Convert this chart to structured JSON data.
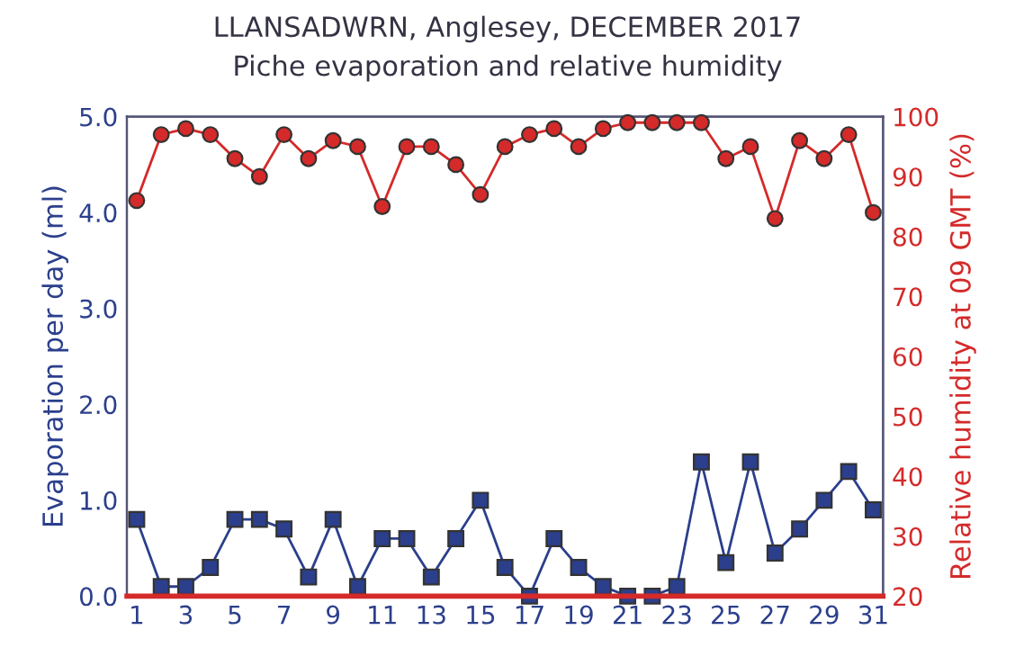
{
  "chart_data": {
    "type": "line",
    "title": "LLANSADWRN, Anglesey, DECEMBER 2017",
    "subtitle": "Piche evaporation and relative humidity",
    "ylabel": "Evaporation per day (ml)",
    "y2label": "Relative humidity at 09 GMT (%)",
    "x": [
      1,
      2,
      3,
      4,
      5,
      6,
      7,
      8,
      9,
      10,
      11,
      12,
      13,
      14,
      15,
      16,
      17,
      18,
      19,
      20,
      21,
      22,
      23,
      24,
      25,
      26,
      27,
      28,
      29,
      30,
      31
    ],
    "xlim": [
      0.6,
      31.4
    ],
    "xticks": [
      1,
      3,
      5,
      7,
      9,
      11,
      13,
      15,
      17,
      19,
      21,
      23,
      25,
      27,
      29,
      31
    ],
    "ylim": [
      0,
      5
    ],
    "yticks": [
      {
        "value": 0,
        "label": "0.0"
      },
      {
        "value": 1,
        "label": "1.0"
      },
      {
        "value": 2,
        "label": "2.0"
      },
      {
        "value": 3,
        "label": "3.0"
      },
      {
        "value": 4,
        "label": "4.0"
      },
      {
        "value": 5,
        "label": "5.0"
      }
    ],
    "y2lim": [
      20,
      100
    ],
    "y2ticks": [
      20,
      30,
      40,
      50,
      60,
      70,
      80,
      90,
      100
    ],
    "grid": false,
    "legend": false,
    "series": [
      {
        "color": "#2b3f8c",
        "marker": "square",
        "values": [
          0.8,
          0.1,
          0.1,
          0.3,
          0.8,
          0.8,
          0.7,
          0.2,
          0.8,
          0.1,
          0.6,
          0.6,
          0.2,
          0.6,
          1.0,
          0.3,
          0.0,
          0.6,
          0.3,
          0.1,
          0.0,
          0.0,
          0.1,
          1.4,
          0.35,
          1.4,
          0.45,
          0.7,
          1.0,
          1.3,
          0.9
        ]
      },
      {
        "color": "#d42a2a",
        "marker": "circle",
        "axis": "y2",
        "values": [
          86,
          97,
          98,
          97,
          93,
          90,
          97,
          93,
          96,
          95,
          85,
          95,
          95,
          92,
          87,
          95,
          97,
          98,
          95,
          98,
          99,
          99,
          99,
          99,
          93,
          95,
          83,
          96,
          93,
          97,
          84
        ]
      }
    ]
  }
}
